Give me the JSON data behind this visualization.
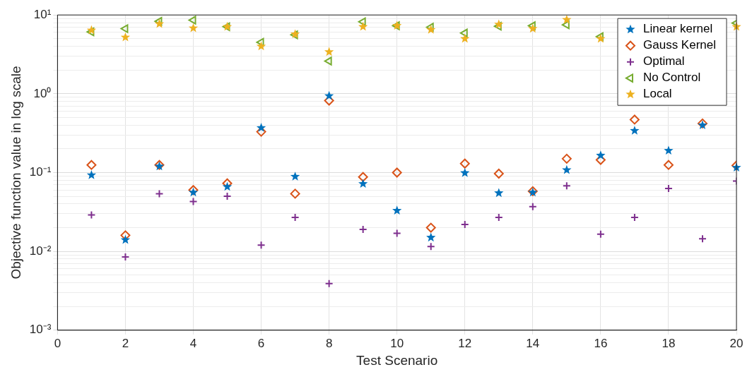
{
  "chart_data": {
    "type": "scatter",
    "xlabel": "Test Scenario",
    "ylabel": "Objective function value in log scale",
    "log": "y",
    "grid": true,
    "legend": "top right",
    "x": [
      1,
      2,
      3,
      4,
      5,
      6,
      7,
      8,
      9,
      10,
      11,
      12,
      13,
      14,
      15,
      16,
      17,
      18,
      19,
      20
    ],
    "xlim": [
      0,
      20
    ],
    "xticks": [
      0,
      2,
      4,
      6,
      8,
      10,
      12,
      14,
      16,
      18,
      20
    ],
    "ylim": [
      0.001,
      10
    ],
    "yticks": [
      {
        "value": 0.001,
        "label": "10⁻³"
      },
      {
        "value": 0.002,
        "label": null
      },
      {
        "value": 0.003,
        "label": null
      },
      {
        "value": 0.004,
        "label": null
      },
      {
        "value": 0.005,
        "label": null
      },
      {
        "value": 0.006,
        "label": null
      },
      {
        "value": 0.007,
        "label": null
      },
      {
        "value": 0.008,
        "label": null
      },
      {
        "value": 0.009,
        "label": null
      },
      {
        "value": 0.01,
        "label": "10⁻²"
      },
      {
        "value": 0.02,
        "label": null
      },
      {
        "value": 0.03,
        "label": null
      },
      {
        "value": 0.04,
        "label": null
      },
      {
        "value": 0.05,
        "label": null
      },
      {
        "value": 0.06,
        "label": null
      },
      {
        "value": 0.07,
        "label": null
      },
      {
        "value": 0.08,
        "label": null
      },
      {
        "value": 0.09,
        "label": null
      },
      {
        "value": 0.1,
        "label": "10⁻¹"
      },
      {
        "value": 0.2,
        "label": null
      },
      {
        "value": 0.3,
        "label": null
      },
      {
        "value": 0.4,
        "label": null
      },
      {
        "value": 0.5,
        "label": null
      },
      {
        "value": 0.6,
        "label": null
      },
      {
        "value": 0.7,
        "label": null
      },
      {
        "value": 0.8,
        "label": null
      },
      {
        "value": 0.9,
        "label": null
      },
      {
        "value": 1,
        "label": "10⁰"
      },
      {
        "value": 2,
        "label": null
      },
      {
        "value": 3,
        "label": null
      },
      {
        "value": 4,
        "label": null
      },
      {
        "value": 5,
        "label": null
      },
      {
        "value": 6,
        "label": null
      },
      {
        "value": 7,
        "label": null
      },
      {
        "value": 8,
        "label": null
      },
      {
        "value": 9,
        "label": null
      },
      {
        "value": 10,
        "label": "10¹"
      }
    ],
    "series": [
      {
        "name": "Linear kernel",
        "color": "#0072bd",
        "marker": "star",
        "values": [
          0.093,
          0.014,
          0.12,
          0.056,
          0.066,
          0.37,
          0.089,
          0.94,
          0.072,
          0.033,
          0.015,
          0.099,
          0.055,
          0.056,
          0.108,
          0.165,
          0.34,
          0.19,
          0.4,
          0.116
        ]
      },
      {
        "name": "Gauss Kernel",
        "color": "#d95319",
        "marker": "diamond",
        "values": [
          0.125,
          0.016,
          0.125,
          0.06,
          0.073,
          0.33,
          0.054,
          0.82,
          0.088,
          0.1,
          0.02,
          0.13,
          0.097,
          0.058,
          0.15,
          0.145,
          0.47,
          0.125,
          0.42,
          0.123
        ]
      },
      {
        "name": "Optimal",
        "color": "#7e2f8e",
        "marker": "cross",
        "values": [
          0.029,
          0.0085,
          0.054,
          0.043,
          0.05,
          0.012,
          0.027,
          0.0039,
          0.019,
          0.017,
          0.0115,
          0.022,
          0.027,
          0.037,
          0.068,
          0.0165,
          0.027,
          0.063,
          0.0145,
          0.078
        ]
      },
      {
        "name": "No Control",
        "color": "#77ac30",
        "marker": "triangle",
        "values": [
          6.1,
          6.7,
          8.3,
          8.6,
          7.1,
          4.5,
          5.6,
          2.6,
          8.2,
          7.3,
          7.0,
          5.9,
          7.2,
          7.3,
          7.5,
          5.3,
          null,
          null,
          null,
          7.9
        ]
      },
      {
        "name": "Local",
        "color": "#edb120",
        "marker": "star",
        "values": [
          6.4,
          5.2,
          7.7,
          6.8,
          7.1,
          4.0,
          5.7,
          3.4,
          7.1,
          7.3,
          6.5,
          5.0,
          7.6,
          6.7,
          8.7,
          5.0,
          null,
          null,
          null,
          7.1
        ]
      }
    ]
  }
}
